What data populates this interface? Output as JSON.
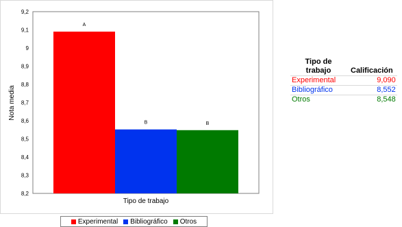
{
  "chart_data": {
    "type": "bar",
    "categories": [
      "Experimental",
      "Bibliográfico",
      "Otros"
    ],
    "values": [
      9.09,
      8.552,
      8.548
    ],
    "data_labels": [
      "A",
      "B",
      "B"
    ],
    "colors": [
      "#ff0000",
      "#0033ee",
      "#007a00"
    ],
    "xlabel": "Tipo de trabajo",
    "ylabel": "Nota media",
    "ylim": [
      8.2,
      9.2
    ],
    "yticks": [
      "8,2",
      "8,3",
      "8,4",
      "8,5",
      "8,6",
      "8,7",
      "8,8",
      "8,9",
      "9",
      "9,1",
      "9,2"
    ],
    "grid": false,
    "legend_position": "bottom"
  },
  "legend": {
    "items": [
      {
        "label": "Experimental",
        "color": "#ff0000"
      },
      {
        "label": "Bibliográfico",
        "color": "#0033ee"
      },
      {
        "label": "Otros",
        "color": "#007a00"
      }
    ]
  },
  "table": {
    "header_type_line1": "Tipo de",
    "header_type_line2": "trabajo",
    "header_score": "Calificación",
    "rows": [
      {
        "type": "Experimental",
        "score": "9,090",
        "color": "#ff0000"
      },
      {
        "type": "Bibliográfico",
        "score": "8,552",
        "color": "#0033ee"
      },
      {
        "type": "Otros",
        "score": "8,548",
        "color": "#007a00"
      }
    ]
  }
}
